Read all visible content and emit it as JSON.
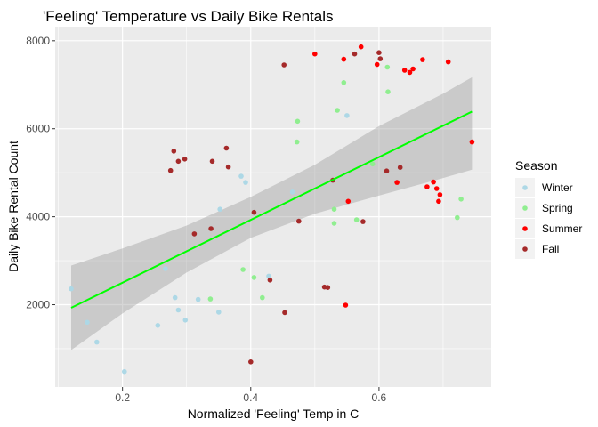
{
  "chart_data": {
    "type": "scatter",
    "title": "'Feeling' Temperature vs Daily Bike Rentals",
    "xlabel": "Normalized 'Feeling' Temp in C",
    "ylabel": "Daily Bike Rental Count",
    "xlim": [
      0.095,
      0.775
    ],
    "ylim": [
      130,
      8320
    ],
    "x_ticks": [
      0.2,
      0.4,
      0.6
    ],
    "x_tick_labels": [
      "0.2",
      "0.4",
      "0.6"
    ],
    "y_ticks": [
      2000,
      4000,
      6000,
      8000
    ],
    "y_tick_labels": [
      "2000",
      "4000",
      "6000",
      "8000"
    ],
    "grid": true,
    "legend": {
      "title": "Season",
      "position": "right",
      "entries": [
        {
          "label": "Winter",
          "color": "#add8e6"
        },
        {
          "label": "Spring",
          "color": "#90ee90"
        },
        {
          "label": "Summer",
          "color": "#ff0000"
        },
        {
          "label": "Fall",
          "color": "#a52a2a"
        }
      ]
    },
    "series": [
      {
        "name": "Winter",
        "color": "#add8e6",
        "points": [
          [
            0.12,
            2360
          ],
          [
            0.145,
            1600
          ],
          [
            0.16,
            1150
          ],
          [
            0.203,
            480
          ],
          [
            0.255,
            1530
          ],
          [
            0.267,
            2820
          ],
          [
            0.282,
            2160
          ],
          [
            0.287,
            1880
          ],
          [
            0.298,
            1650
          ],
          [
            0.318,
            2120
          ],
          [
            0.35,
            1830
          ],
          [
            0.352,
            4170
          ],
          [
            0.385,
            4920
          ],
          [
            0.392,
            4780
          ],
          [
            0.428,
            2650
          ],
          [
            0.465,
            4560
          ],
          [
            0.55,
            6300
          ]
        ]
      },
      {
        "name": "Spring",
        "color": "#90ee90",
        "points": [
          [
            0.337,
            2130
          ],
          [
            0.388,
            2800
          ],
          [
            0.405,
            2620
          ],
          [
            0.418,
            2160
          ],
          [
            0.472,
            5700
          ],
          [
            0.473,
            6170
          ],
          [
            0.53,
            3850
          ],
          [
            0.53,
            4170
          ],
          [
            0.535,
            6420
          ],
          [
            0.545,
            7050
          ],
          [
            0.565,
            3930
          ],
          [
            0.59,
            5200
          ],
          [
            0.613,
            7400
          ],
          [
            0.614,
            6840
          ],
          [
            0.722,
            3980
          ],
          [
            0.728,
            4400
          ]
        ]
      },
      {
        "name": "Summer",
        "color": "#ff0000",
        "points": [
          [
            0.5,
            7700
          ],
          [
            0.545,
            7580
          ],
          [
            0.548,
            1990
          ],
          [
            0.552,
            4350
          ],
          [
            0.572,
            7860
          ],
          [
            0.597,
            7460
          ],
          [
            0.628,
            4780
          ],
          [
            0.64,
            7330
          ],
          [
            0.648,
            7280
          ],
          [
            0.653,
            7360
          ],
          [
            0.668,
            7570
          ],
          [
            0.675,
            4680
          ],
          [
            0.685,
            4790
          ],
          [
            0.69,
            4640
          ],
          [
            0.693,
            4350
          ],
          [
            0.695,
            4500
          ],
          [
            0.708,
            7520
          ],
          [
            0.745,
            5700
          ]
        ]
      },
      {
        "name": "Fall",
        "color": "#a52a2a",
        "points": [
          [
            0.275,
            5050
          ],
          [
            0.28,
            5490
          ],
          [
            0.287,
            5260
          ],
          [
            0.297,
            5310
          ],
          [
            0.312,
            3610
          ],
          [
            0.338,
            3730
          ],
          [
            0.34,
            5260
          ],
          [
            0.362,
            5560
          ],
          [
            0.365,
            5130
          ],
          [
            0.4,
            700
          ],
          [
            0.405,
            4100
          ],
          [
            0.43,
            2560
          ],
          [
            0.452,
            7450
          ],
          [
            0.453,
            1820
          ],
          [
            0.475,
            3900
          ],
          [
            0.515,
            2400
          ],
          [
            0.52,
            2390
          ],
          [
            0.528,
            4830
          ],
          [
            0.562,
            7700
          ],
          [
            0.575,
            3890
          ],
          [
            0.6,
            7730
          ],
          [
            0.602,
            7590
          ],
          [
            0.612,
            5040
          ],
          [
            0.633,
            5120
          ]
        ]
      }
    ],
    "fit_line": {
      "type": "linear",
      "color": "#00ff00",
      "x": [
        0.12,
        0.745
      ],
      "y": [
        1930,
        6390
      ]
    },
    "confidence_band": {
      "level": 0.95,
      "x": [
        0.12,
        0.2,
        0.3,
        0.4,
        0.5,
        0.6,
        0.7,
        0.745
      ],
      "lower": [
        970,
        1800,
        2730,
        3520,
        4070,
        4480,
        4880,
        5070
      ],
      "upper": [
        2890,
        3280,
        3800,
        4450,
        5180,
        6060,
        6800,
        7170
      ]
    }
  }
}
